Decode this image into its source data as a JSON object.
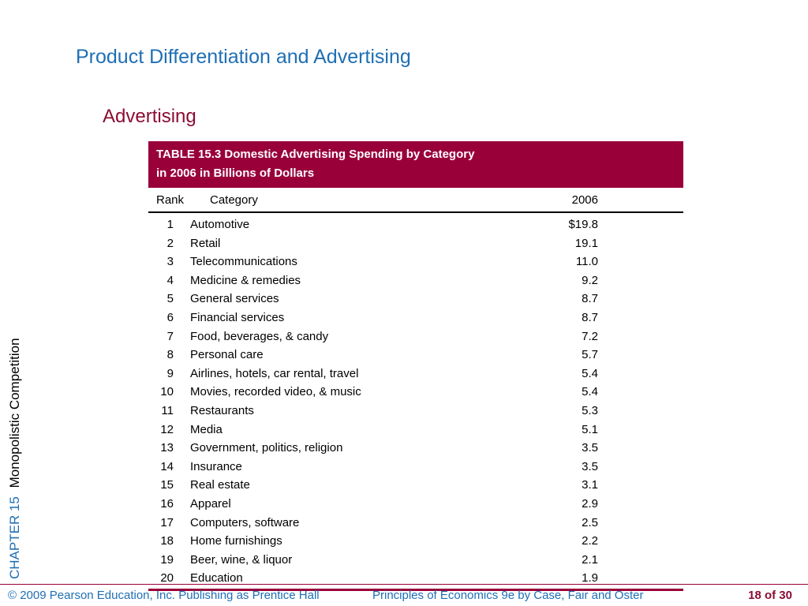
{
  "slide": {
    "title": "Product Differentiation and Advertising",
    "subtitle": "Advertising"
  },
  "side": {
    "chapter": "CHAPTER 15",
    "topic": "Monopolistic Competition"
  },
  "table": {
    "title_line1": "TABLE 15.3  Domestic Advertising Spending by Category",
    "title_line2": "in 2006 in Billions of Dollars",
    "columns": [
      "Rank",
      "Category",
      "2006"
    ],
    "rows": [
      {
        "rank": "1",
        "category": "Automotive",
        "value": "$19.8"
      },
      {
        "rank": "2",
        "category": "Retail",
        "value": "19.1"
      },
      {
        "rank": "3",
        "category": "Telecommunications",
        "value": "11.0"
      },
      {
        "rank": "4",
        "category": "Medicine & remedies",
        "value": "9.2"
      },
      {
        "rank": "5",
        "category": "General services",
        "value": "8.7"
      },
      {
        "rank": "6",
        "category": "Financial services",
        "value": "8.7"
      },
      {
        "rank": "7",
        "category": "Food, beverages, & candy",
        "value": "7.2"
      },
      {
        "rank": "8",
        "category": "Personal care",
        "value": "5.7"
      },
      {
        "rank": "9",
        "category": "Airlines, hotels, car rental, travel",
        "value": "5.4"
      },
      {
        "rank": "10",
        "category": "Movies, recorded video, & music",
        "value": "5.4"
      },
      {
        "rank": "11",
        "category": "Restaurants",
        "value": "5.3"
      },
      {
        "rank": "12",
        "category": "Media",
        "value": "5.1"
      },
      {
        "rank": "13",
        "category": "Government, politics, religion",
        "value": "3.5"
      },
      {
        "rank": "14",
        "category": "Insurance",
        "value": "3.5"
      },
      {
        "rank": "15",
        "category": "Real estate",
        "value": "3.1"
      },
      {
        "rank": "16",
        "category": "Apparel",
        "value": "2.9"
      },
      {
        "rank": "17",
        "category": "Computers, software",
        "value": "2.5"
      },
      {
        "rank": "18",
        "category": "Home furnishings",
        "value": "2.2"
      },
      {
        "rank": "19",
        "category": "Beer, wine, & liquor",
        "value": "2.1"
      },
      {
        "rank": "20",
        "category": "Education",
        "value": "1.9"
      }
    ]
  },
  "footer": {
    "copyright": "© 2009 Pearson Education, Inc. Publishing as Prentice Hall",
    "book": "Principles of Economics 9e by Case, Fair and Oster",
    "page": "18 of 30"
  },
  "colors": {
    "title_blue": "#1f6fb4",
    "accent_maroon": "#99003a"
  }
}
